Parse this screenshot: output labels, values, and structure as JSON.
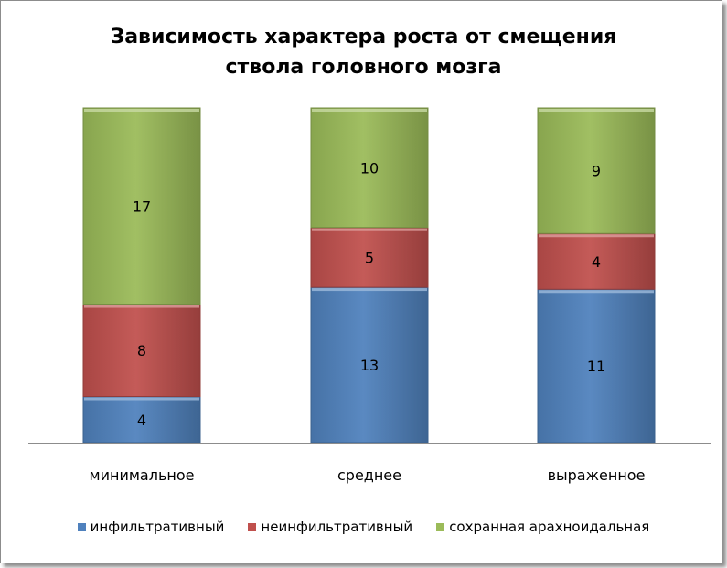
{
  "chart_data": {
    "type": "bar",
    "stacked": true,
    "title_lines": [
      "Зависимость характера роста от смещения",
      "ствола головного мозга"
    ],
    "categories": [
      "минимальное",
      "среднее",
      "выраженное"
    ],
    "series": [
      {
        "name": "инфильтративный",
        "color": "#4f81bd",
        "values": [
          4,
          13,
          11
        ]
      },
      {
        "name": "неинфильтративный",
        "color": "#c0504d",
        "values": [
          8,
          5,
          4
        ]
      },
      {
        "name": "сохранная арахноидальная",
        "color": "#9bbb59",
        "values": [
          17,
          10,
          9
        ]
      }
    ],
    "normalized": true,
    "grid": false,
    "legend": "bottom"
  }
}
